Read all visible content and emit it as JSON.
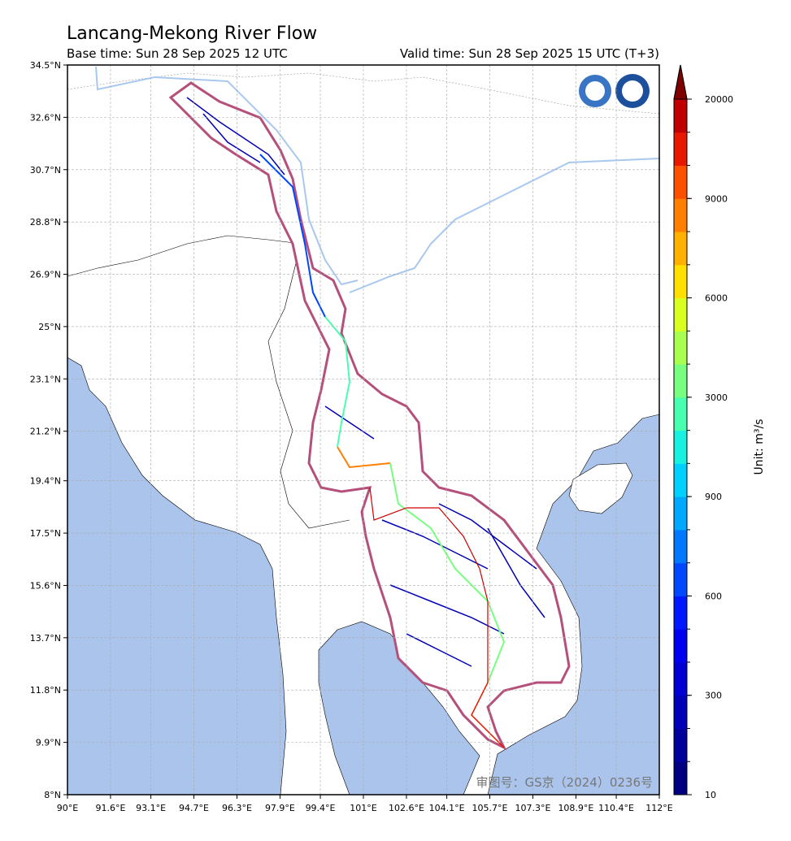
{
  "chart_data": {
    "type": "map",
    "title": "Lancang-Mekong River Flow",
    "subtitle_left": "Base time: Sun 28 Sep 2025 12 UTC",
    "subtitle_right": "Valid time: Sun 28 Sep 2025 15 UTC (T+3)",
    "xlim": [
      90,
      112
    ],
    "ylim": [
      8,
      34.5
    ],
    "grid": true,
    "xticks": [
      {
        "value": 90,
        "label": "90°E"
      },
      {
        "value": 91.6,
        "label": "91.6°E"
      },
      {
        "value": 93.1,
        "label": "93.1°E"
      },
      {
        "value": 94.7,
        "label": "94.7°E"
      },
      {
        "value": 96.3,
        "label": "96.3°E"
      },
      {
        "value": 97.9,
        "label": "97.9°E"
      },
      {
        "value": 99.4,
        "label": "99.4°E"
      },
      {
        "value": 101,
        "label": "101°E"
      },
      {
        "value": 102.6,
        "label": "102.6°E"
      },
      {
        "value": 104.1,
        "label": "104.1°E"
      },
      {
        "value": 105.7,
        "label": "105.7°E"
      },
      {
        "value": 107.3,
        "label": "107.3°E"
      },
      {
        "value": 108.9,
        "label": "108.9°E"
      },
      {
        "value": 110.4,
        "label": "110.4°E"
      },
      {
        "value": 112,
        "label": "112°E"
      }
    ],
    "yticks": [
      {
        "value": 8,
        "label": "8°N"
      },
      {
        "value": 9.9,
        "label": "9.9°N"
      },
      {
        "value": 11.8,
        "label": "11.8°N"
      },
      {
        "value": 13.7,
        "label": "13.7°N"
      },
      {
        "value": 15.6,
        "label": "15.6°N"
      },
      {
        "value": 17.5,
        "label": "17.5°N"
      },
      {
        "value": 19.4,
        "label": "19.4°N"
      },
      {
        "value": 21.2,
        "label": "21.2°N"
      },
      {
        "value": 23.1,
        "label": "23.1°N"
      },
      {
        "value": 25,
        "label": "25°N"
      },
      {
        "value": 26.9,
        "label": "26.9°N"
      },
      {
        "value": 28.8,
        "label": "28.8°N"
      },
      {
        "value": 30.7,
        "label": "30.7°N"
      },
      {
        "value": 32.6,
        "label": "32.6°N"
      },
      {
        "value": 34.5,
        "label": "34.5°N"
      }
    ],
    "colorbar": {
      "label": "Unit: m³/s",
      "ticks": [
        10,
        300,
        600,
        900,
        3000,
        6000,
        9000,
        20000
      ],
      "colors": [
        "#000080",
        "#00009c",
        "#0000b8",
        "#0000d4",
        "#0000f0",
        "#0018ff",
        "#0048ff",
        "#0078ff",
        "#00a8ff",
        "#00d0ff",
        "#18f0e0",
        "#48ffb0",
        "#78ff80",
        "#a8ff50",
        "#d8ff20",
        "#ffe000",
        "#ffb000",
        "#ff8000",
        "#ff5000",
        "#e81800",
        "#c00000"
      ],
      "extend_color": "#800000"
    },
    "annotation": "审图号：GS京（2024）0236号"
  }
}
